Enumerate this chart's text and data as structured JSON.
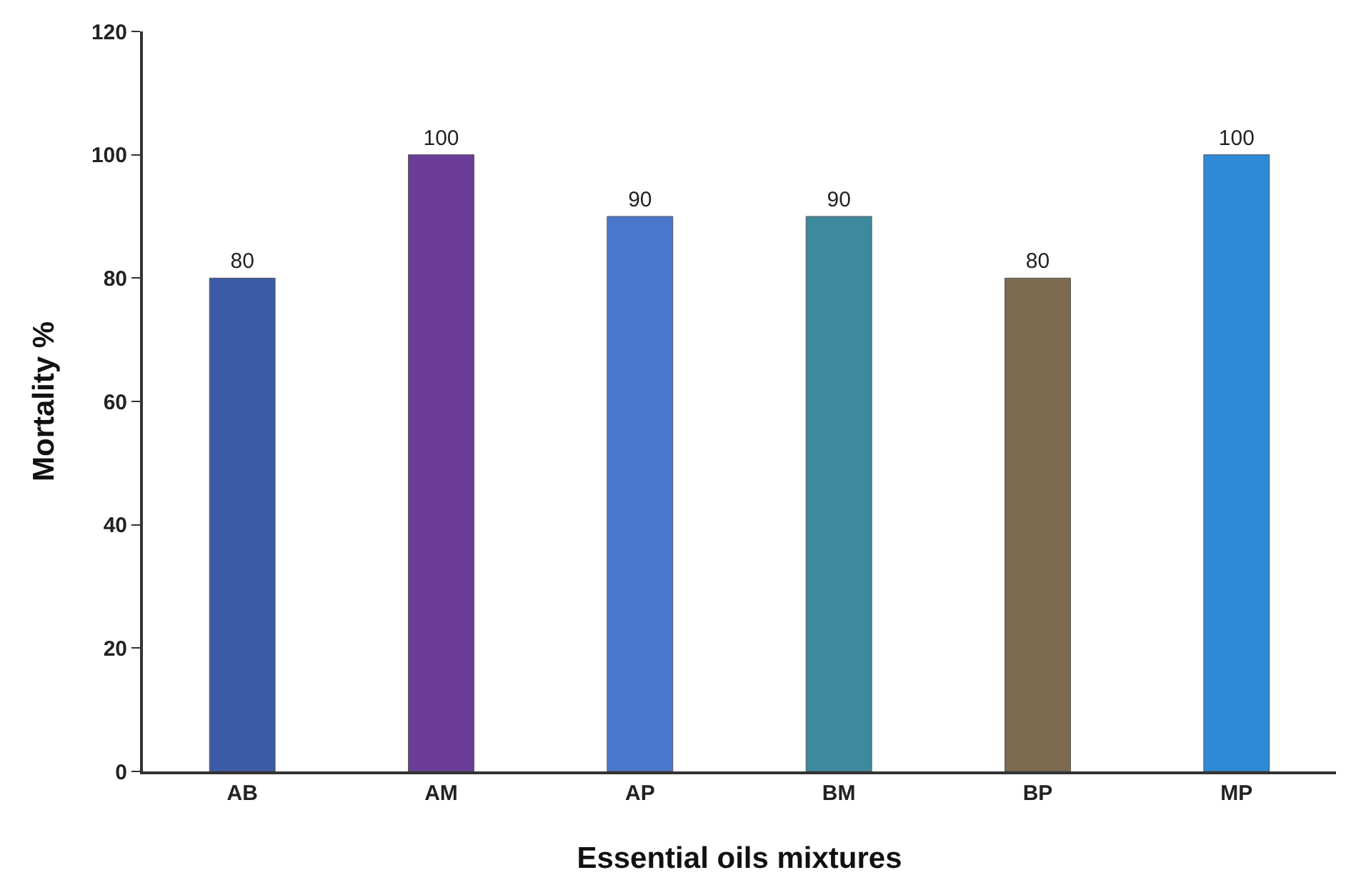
{
  "chart_data": {
    "type": "bar",
    "xlabel": "Essential oils mixtures",
    "ylabel": "Mortality %",
    "categories": [
      "AB",
      "AM",
      "AP",
      "BM",
      "BP",
      "MP"
    ],
    "values": [
      80,
      100,
      90,
      90,
      80,
      100
    ],
    "colors": [
      "#3b5ba8",
      "#6b3c98",
      "#4a78cc",
      "#3d8a9c",
      "#7d6a4e",
      "#2e8ad6"
    ],
    "ylim": [
      0,
      120
    ],
    "yticks": [
      0,
      20,
      40,
      60,
      80,
      100,
      120
    ],
    "grid": false,
    "data_labels": true
  }
}
